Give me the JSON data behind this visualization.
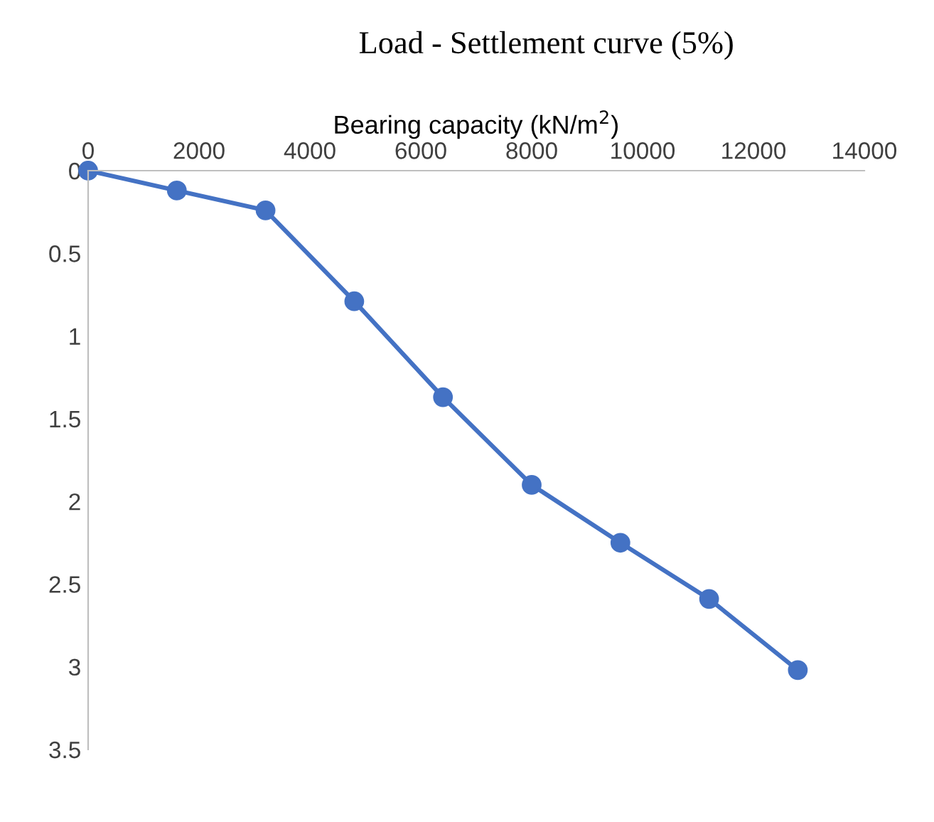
{
  "chart_data": {
    "type": "line",
    "title": "Load - Settlement curve (5%)",
    "xlabel": "Bearing capacity (kN/m$^{2}$)",
    "x": [
      0,
      1600,
      3200,
      4800,
      6400,
      8000,
      9600,
      11200,
      12800
    ],
    "series": [
      {
        "color": "#4472c4",
        "values": [
          0,
          0.12,
          0.24,
          0.79,
          1.37,
          1.9,
          2.25,
          2.59,
          3.02
        ]
      }
    ],
    "xlim": [
      0,
      14000
    ],
    "xticks": [
      0,
      2000,
      4000,
      6000,
      8000,
      10000,
      12000,
      14000
    ],
    "ylim": [
      3.5,
      0
    ],
    "yticks": [
      0,
      0.5,
      1,
      1.5,
      2,
      2.5,
      3,
      3.5
    ],
    "marker": "circle",
    "line_style": "solid",
    "grid": false,
    "legend": false
  }
}
